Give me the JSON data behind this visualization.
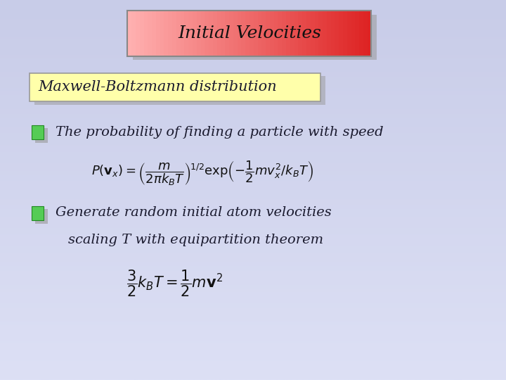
{
  "title": "Initial Velocities",
  "subtitle": "Maxwell-Boltzmann distribution",
  "bg_color_top": "#c8cce8",
  "bg_color_bottom": "#dde0f5",
  "title_box_left_color": "#ffb0b0",
  "title_box_right_color": "#dd2020",
  "subtitle_box_color": "#ffffaa",
  "bullet_green": "#55cc55",
  "bullet_green_dark": "#228822",
  "bullet_shadow": "#999999",
  "text_color": "#1a1a2e",
  "shadow_color": "#999999",
  "bullet1_text": "The probability of finding a particle with speed",
  "bullet2_text": "Generate random initial atom velocities",
  "sub_text": "scaling T with equipartition theorem",
  "title_fontsize": 18,
  "subtitle_fontsize": 15,
  "body_fontsize": 14,
  "formula1_fontsize": 13,
  "formula2_fontsize": 15
}
